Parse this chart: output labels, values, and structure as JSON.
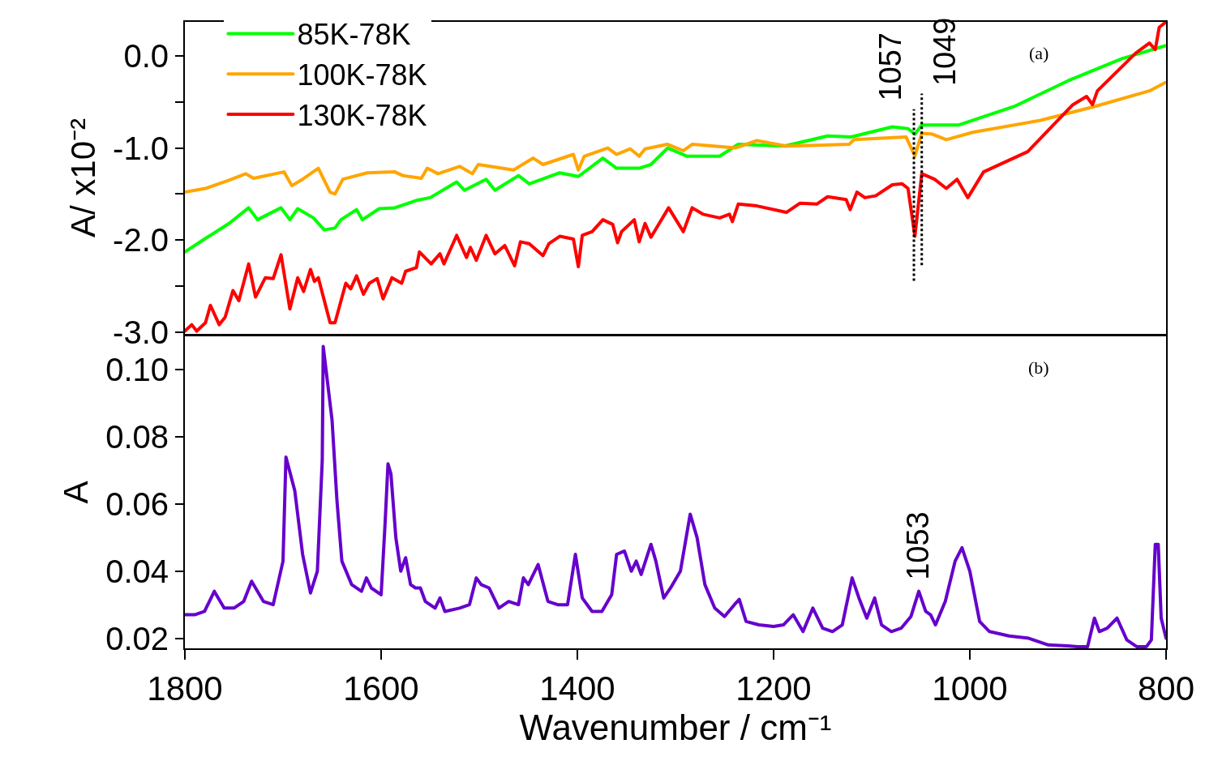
{
  "chart_data": [
    {
      "type": "line",
      "ylabel": "A/ x10⁻²",
      "xlim": [
        1800,
        800
      ],
      "xticks": [
        1800,
        1600,
        1400,
        1200,
        1000,
        800
      ],
      "ylim": [
        -3.02,
        0.37
      ],
      "yticks": [
        {
          "value": 0,
          "label": "0.0"
        },
        {
          "value": -0.5,
          "label": null
        },
        {
          "value": -1,
          "label": "-1.0"
        },
        {
          "value": -1.5,
          "label": null
        },
        {
          "value": -2,
          "label": "-2.0"
        },
        {
          "value": -2.5,
          "label": null
        },
        {
          "value": -3,
          "label": "-3.0"
        }
      ],
      "tick_labels": "y",
      "grid": false,
      "legend": "top left",
      "annotations": [
        "(a)"
      ],
      "ref_lines": [
        {
          "axis": "x",
          "value": 1057,
          "label": "1057",
          "line_style": "dotted",
          "color": "#000000"
        },
        {
          "axis": "x",
          "value": 1049,
          "label": "1049",
          "line_style": "dotted",
          "color": "#000000"
        }
      ],
      "series": [
        {
          "name": "85K-78K",
          "color": "#00ff00",
          "x": [
            1800,
            1780,
            1755,
            1735,
            1726,
            1702,
            1693,
            1685,
            1669,
            1658,
            1647,
            1641,
            1625,
            1619,
            1602,
            1586,
            1564,
            1550,
            1523,
            1515,
            1493,
            1484,
            1460,
            1449,
            1418,
            1399,
            1374,
            1360,
            1337,
            1325,
            1308,
            1288,
            1255,
            1236,
            1189,
            1145,
            1121,
            1079,
            1063,
            1056,
            1049,
            1011,
            955,
            900,
            845,
            801
          ],
          "values": [
            -2.13,
            -1.99,
            -1.82,
            -1.65,
            -1.78,
            -1.65,
            -1.78,
            -1.66,
            -1.76,
            -1.89,
            -1.87,
            -1.78,
            -1.67,
            -1.78,
            -1.66,
            -1.65,
            -1.57,
            -1.54,
            -1.37,
            -1.46,
            -1.34,
            -1.46,
            -1.3,
            -1.39,
            -1.27,
            -1.31,
            -1.11,
            -1.22,
            -1.22,
            -1.18,
            -1.0,
            -1.09,
            -1.09,
            -0.96,
            -0.98,
            -0.87,
            -0.88,
            -0.77,
            -0.79,
            -0.85,
            -0.75,
            -0.75,
            -0.55,
            -0.27,
            -0.03,
            0.11
          ]
        },
        {
          "name": "100K-78K",
          "color": "#ffa500",
          "x": [
            1800,
            1779,
            1755,
            1738,
            1730,
            1699,
            1691,
            1680,
            1664,
            1652,
            1647,
            1639,
            1614,
            1586,
            1578,
            1559,
            1553,
            1542,
            1520,
            1507,
            1501,
            1465,
            1445,
            1435,
            1404,
            1399,
            1393,
            1369,
            1360,
            1346,
            1337,
            1331,
            1308,
            1292,
            1283,
            1239,
            1217,
            1187,
            1123,
            1118,
            1065,
            1056,
            1049,
            1038,
            1024,
            997,
            928,
            873,
            817,
            801
          ],
          "values": [
            -1.48,
            -1.44,
            -1.35,
            -1.28,
            -1.33,
            -1.26,
            -1.41,
            -1.34,
            -1.22,
            -1.48,
            -1.5,
            -1.34,
            -1.27,
            -1.26,
            -1.3,
            -1.33,
            -1.22,
            -1.28,
            -1.2,
            -1.28,
            -1.18,
            -1.24,
            -1.11,
            -1.18,
            -1.07,
            -1.24,
            -1.09,
            -1.0,
            -1.07,
            -1.01,
            -1.09,
            -1.01,
            -0.96,
            -1.03,
            -0.96,
            -1.0,
            -0.92,
            -0.98,
            -0.96,
            -0.91,
            -0.88,
            -1.09,
            -0.84,
            -0.85,
            -0.91,
            -0.83,
            -0.7,
            -0.55,
            -0.38,
            -0.29
          ]
        },
        {
          "name": "130K-78K",
          "color": "#ff0000",
          "x": [
            1800,
            1793,
            1788,
            1779,
            1774,
            1765,
            1759,
            1751,
            1745,
            1735,
            1728,
            1718,
            1710,
            1702,
            1693,
            1685,
            1679,
            1672,
            1668,
            1664,
            1652,
            1647,
            1636,
            1631,
            1625,
            1618,
            1612,
            1604,
            1598,
            1589,
            1579,
            1575,
            1564,
            1561,
            1549,
            1540,
            1536,
            1523,
            1513,
            1509,
            1503,
            1493,
            1484,
            1474,
            1464,
            1458,
            1449,
            1435,
            1429,
            1418,
            1404,
            1399,
            1395,
            1385,
            1374,
            1364,
            1359,
            1355,
            1342,
            1337,
            1331,
            1325,
            1307,
            1292,
            1283,
            1272,
            1255,
            1245,
            1242,
            1236,
            1217,
            1187,
            1173,
            1156,
            1145,
            1126,
            1122,
            1115,
            1107,
            1096,
            1079,
            1069,
            1063,
            1056,
            1049,
            1036,
            1024,
            1013,
            1002,
            986,
            941,
            895,
            881,
            875,
            870,
            831,
            817,
            811,
            807,
            800
          ],
          "values": [
            -2.99,
            -2.92,
            -2.99,
            -2.9,
            -2.71,
            -2.92,
            -2.84,
            -2.55,
            -2.66,
            -2.26,
            -2.62,
            -2.41,
            -2.42,
            -2.16,
            -2.75,
            -2.41,
            -2.56,
            -2.32,
            -2.45,
            -2.41,
            -2.9,
            -2.9,
            -2.47,
            -2.53,
            -2.39,
            -2.59,
            -2.47,
            -2.42,
            -2.64,
            -2.41,
            -2.47,
            -2.34,
            -2.3,
            -2.13,
            -2.26,
            -2.15,
            -2.26,
            -1.95,
            -2.19,
            -2.08,
            -2.22,
            -1.95,
            -2.15,
            -2.06,
            -2.28,
            -2.02,
            -2.04,
            -2.17,
            -2.04,
            -1.96,
            -1.99,
            -2.29,
            -1.95,
            -1.91,
            -1.78,
            -1.83,
            -2.03,
            -1.91,
            -1.78,
            -2.02,
            -1.82,
            -1.97,
            -1.65,
            -1.91,
            -1.65,
            -1.72,
            -1.76,
            -1.72,
            -1.8,
            -1.61,
            -1.63,
            -1.7,
            -1.6,
            -1.61,
            -1.53,
            -1.56,
            -1.67,
            -1.48,
            -1.54,
            -1.52,
            -1.4,
            -1.39,
            -1.44,
            -1.96,
            -1.28,
            -1.34,
            -1.44,
            -1.34,
            -1.54,
            -1.26,
            -1.04,
            -0.53,
            -0.44,
            -0.53,
            -0.38,
            0.03,
            0.14,
            0.07,
            0.31,
            0.37
          ]
        }
      ]
    },
    {
      "type": "line",
      "xlabel": "Wavenumber / cm⁻¹",
      "ylabel": "A",
      "xlim": [
        1800,
        800
      ],
      "xticks": [
        1800,
        1600,
        1400,
        1200,
        1000,
        800
      ],
      "ylim": [
        0.017,
        0.11
      ],
      "yticks": [
        0.02,
        0.04,
        0.06,
        0.08,
        {
          "value": 0.1,
          "label": "0.10"
        }
      ],
      "grid": false,
      "annotations": [
        "(b)",
        {
          "text": "1053",
          "x": 1053,
          "y": 0.035
        }
      ],
      "series": [
        {
          "color": "#6600cc",
          "x": [
            1800,
            1790,
            1780,
            1770,
            1760,
            1750,
            1740,
            1732,
            1720,
            1710,
            1700,
            1697,
            1688,
            1680,
            1672,
            1665,
            1660,
            1659,
            1650,
            1645,
            1640,
            1630,
            1620,
            1615,
            1610,
            1600,
            1596,
            1593,
            1590,
            1585,
            1580,
            1575,
            1570,
            1565,
            1560,
            1555,
            1545,
            1540,
            1535,
            1520,
            1510,
            1503,
            1498,
            1490,
            1480,
            1470,
            1460,
            1455,
            1450,
            1440,
            1430,
            1420,
            1410,
            1402,
            1395,
            1385,
            1375,
            1365,
            1360,
            1352,
            1345,
            1340,
            1335,
            1325,
            1320,
            1312,
            1305,
            1295,
            1285,
            1278,
            1270,
            1260,
            1250,
            1240,
            1235,
            1228,
            1215,
            1200,
            1190,
            1180,
            1170,
            1160,
            1150,
            1140,
            1130,
            1120,
            1113,
            1105,
            1097,
            1090,
            1080,
            1070,
            1060,
            1052,
            1045,
            1040,
            1035,
            1025,
            1015,
            1008,
            1000,
            990,
            980,
            960,
            940,
            920,
            900,
            890,
            880,
            873,
            868,
            860,
            850,
            840,
            830,
            820,
            815,
            811,
            808,
            805,
            800
          ],
          "values": [
            0.027,
            0.027,
            0.028,
            0.034,
            0.029,
            0.029,
            0.031,
            0.037,
            0.031,
            0.03,
            0.043,
            0.074,
            0.064,
            0.045,
            0.0335,
            0.04,
            0.073,
            0.107,
            0.085,
            0.061,
            0.043,
            0.036,
            0.034,
            0.038,
            0.035,
            0.033,
            0.054,
            0.072,
            0.069,
            0.05,
            0.04,
            0.044,
            0.036,
            0.035,
            0.035,
            0.031,
            0.029,
            0.032,
            0.028,
            0.029,
            0.03,
            0.038,
            0.036,
            0.035,
            0.029,
            0.031,
            0.03,
            0.038,
            0.036,
            0.042,
            0.031,
            0.03,
            0.03,
            0.045,
            0.032,
            0.028,
            0.028,
            0.033,
            0.045,
            0.046,
            0.04,
            0.043,
            0.039,
            0.048,
            0.043,
            0.032,
            0.035,
            0.04,
            0.057,
            0.05,
            0.036,
            0.029,
            0.0265,
            0.03,
            0.0316,
            0.025,
            0.024,
            0.0235,
            0.024,
            0.027,
            0.022,
            0.029,
            0.023,
            0.022,
            0.024,
            0.038,
            0.032,
            0.026,
            0.032,
            0.024,
            0.022,
            0.023,
            0.0265,
            0.034,
            0.028,
            0.027,
            0.024,
            0.031,
            0.043,
            0.047,
            0.04,
            0.025,
            0.022,
            0.0207,
            0.02,
            0.018,
            0.0177,
            0.0175,
            0.0175,
            0.026,
            0.022,
            0.023,
            0.026,
            0.0195,
            0.0175,
            0.0175,
            0.0195,
            0.048,
            0.048,
            0.026,
            0.02
          ]
        }
      ]
    }
  ]
}
